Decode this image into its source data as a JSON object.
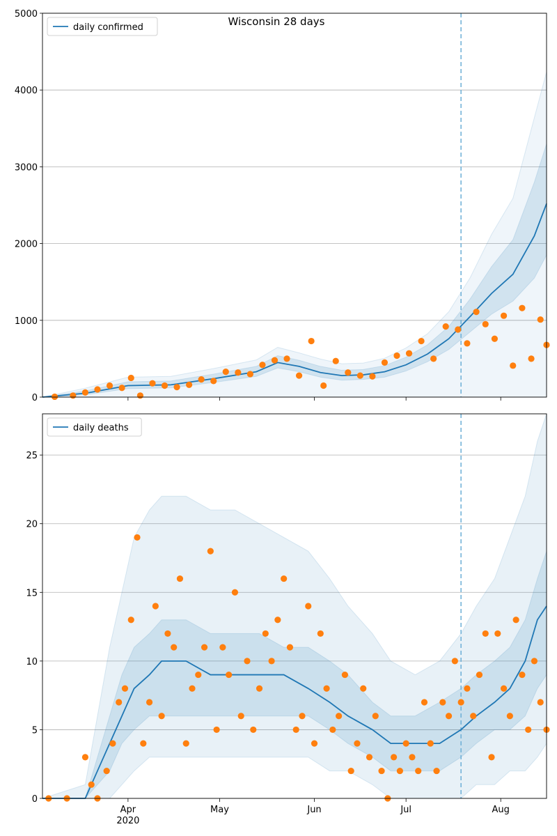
{
  "figure": {
    "title": "Wisconsin 28 days"
  },
  "colors": {
    "model_line": "#1f77b4",
    "observed_points": "#ff7f0e",
    "band": "#1f77b4",
    "vline": "#6baed6",
    "grid": "#b0b0b0"
  },
  "chart_data": [
    {
      "type": "line",
      "panel": "top",
      "title": "Wisconsin 28 days",
      "legend": {
        "placement": "top-left",
        "entries": [
          "daily confirmed"
        ]
      },
      "ylim": [
        0,
        5000
      ],
      "yticks": [
        0,
        1000,
        2000,
        3000,
        4000,
        5000
      ],
      "xlim": [
        "2020-03-04",
        "2020-08-16"
      ],
      "grid": "horizontal",
      "forecast_start": "2020-07-19",
      "model_series": {
        "name": "daily confirmed",
        "x": [
          "2020-03-04",
          "2020-03-18",
          "2020-04-01",
          "2020-04-15",
          "2020-04-29",
          "2020-05-13",
          "2020-05-20",
          "2020-05-27",
          "2020-06-03",
          "2020-06-10",
          "2020-06-17",
          "2020-06-24",
          "2020-07-01",
          "2020-07-08",
          "2020-07-15",
          "2020-07-22",
          "2020-07-29",
          "2020-08-05",
          "2020-08-12",
          "2020-08-16"
        ],
        "values": [
          0,
          50,
          150,
          160,
          240,
          330,
          450,
          400,
          320,
          280,
          290,
          330,
          420,
          560,
          760,
          1050,
          1350,
          1600,
          2100,
          2520
        ],
        "band_inner": [
          [
            0,
            0,
            0
          ],
          [
            0,
            30,
            80
          ],
          [
            0,
            110,
            200
          ],
          [
            0,
            120,
            210
          ],
          [
            0,
            190,
            300
          ],
          [
            0,
            270,
            400
          ],
          [
            0,
            380,
            540
          ],
          [
            0,
            330,
            480
          ],
          [
            0,
            260,
            400
          ],
          [
            0,
            220,
            350
          ],
          [
            0,
            230,
            360
          ],
          [
            0,
            260,
            410
          ],
          [
            0,
            340,
            520
          ],
          [
            0,
            460,
            680
          ],
          [
            0,
            620,
            920
          ],
          [
            0,
            850,
            1280
          ],
          [
            0,
            1080,
            1700
          ],
          [
            0,
            1250,
            2050
          ],
          [
            0,
            1550,
            2800
          ],
          [
            0,
            1850,
            3300
          ]
        ]
      },
      "observed": {
        "x": [
          "2020-03-08",
          "2020-03-14",
          "2020-03-18",
          "2020-03-22",
          "2020-03-26",
          "2020-03-30",
          "2020-04-02",
          "2020-04-05",
          "2020-04-09",
          "2020-04-13",
          "2020-04-17",
          "2020-04-21",
          "2020-04-25",
          "2020-04-29",
          "2020-05-03",
          "2020-05-07",
          "2020-05-11",
          "2020-05-15",
          "2020-05-19",
          "2020-05-23",
          "2020-05-27",
          "2020-05-31",
          "2020-06-04",
          "2020-06-08",
          "2020-06-12",
          "2020-06-16",
          "2020-06-20",
          "2020-06-24",
          "2020-06-28",
          "2020-07-02",
          "2020-07-06",
          "2020-07-10",
          "2020-07-14",
          "2020-07-18",
          "2020-07-21",
          "2020-07-24",
          "2020-07-27",
          "2020-07-30",
          "2020-08-02",
          "2020-08-05",
          "2020-08-08",
          "2020-08-11",
          "2020-08-14",
          "2020-08-16"
        ],
        "values": [
          5,
          20,
          60,
          100,
          150,
          120,
          250,
          20,
          180,
          150,
          130,
          160,
          230,
          210,
          330,
          320,
          300,
          420,
          480,
          500,
          280,
          730,
          150,
          470,
          320,
          280,
          270,
          450,
          540,
          570,
          730,
          500,
          920,
          880,
          700,
          1110,
          950,
          760,
          1060,
          410,
          1160,
          500,
          1010,
          680
        ]
      }
    },
    {
      "type": "line",
      "panel": "bottom",
      "legend": {
        "placement": "top-left",
        "entries": [
          "daily deaths"
        ]
      },
      "ylim": [
        0,
        28
      ],
      "yticks": [
        0,
        5,
        10,
        15,
        20,
        25
      ],
      "xlim": [
        "2020-03-04",
        "2020-08-16"
      ],
      "xticks": [
        "Apr\n2020",
        "May",
        "Jun",
        "Jul",
        "Aug"
      ],
      "grid": "horizontal",
      "forecast_start": "2020-07-19",
      "model_series": {
        "name": "daily deaths",
        "x": [
          "2020-03-04",
          "2020-03-18",
          "2020-03-22",
          "2020-03-26",
          "2020-03-30",
          "2020-04-03",
          "2020-04-08",
          "2020-04-12",
          "2020-04-20",
          "2020-04-28",
          "2020-05-06",
          "2020-05-14",
          "2020-05-22",
          "2020-05-30",
          "2020-06-06",
          "2020-06-12",
          "2020-06-20",
          "2020-06-26",
          "2020-07-04",
          "2020-07-12",
          "2020-07-19",
          "2020-07-24",
          "2020-07-30",
          "2020-08-04",
          "2020-08-09",
          "2020-08-13",
          "2020-08-16"
        ],
        "values": [
          0,
          0,
          2,
          4,
          6,
          8,
          9,
          10,
          10,
          9,
          9,
          9,
          9,
          8,
          7,
          6,
          5,
          4,
          4,
          4,
          5,
          6,
          7,
          8,
          10,
          13,
          14
        ],
        "band_outer": [
          [
            0,
            0
          ],
          [
            0,
            1
          ],
          [
            0,
            6
          ],
          [
            0,
            11
          ],
          [
            1,
            15
          ],
          [
            2,
            19
          ],
          [
            3,
            21
          ],
          [
            3,
            22
          ],
          [
            3,
            22
          ],
          [
            3,
            21
          ],
          [
            3,
            21
          ],
          [
            3,
            20
          ],
          [
            3,
            19
          ],
          [
            3,
            18
          ],
          [
            2,
            16
          ],
          [
            2,
            14
          ],
          [
            1,
            12
          ],
          [
            0,
            10
          ],
          [
            0,
            9
          ],
          [
            0,
            10
          ],
          [
            0,
            12
          ],
          [
            1,
            14
          ],
          [
            1,
            16
          ],
          [
            2,
            19
          ],
          [
            2,
            22
          ],
          [
            3,
            26
          ],
          [
            4,
            28
          ]
        ],
        "band_inner": [
          [
            0,
            0
          ],
          [
            0,
            0
          ],
          [
            1,
            3
          ],
          [
            2,
            6
          ],
          [
            4,
            9
          ],
          [
            5,
            11
          ],
          [
            6,
            12
          ],
          [
            6,
            13
          ],
          [
            6,
            13
          ],
          [
            6,
            12
          ],
          [
            6,
            12
          ],
          [
            6,
            12
          ],
          [
            6,
            11
          ],
          [
            6,
            11
          ],
          [
            5,
            10
          ],
          [
            4,
            9
          ],
          [
            3,
            7
          ],
          [
            2,
            6
          ],
          [
            2,
            6
          ],
          [
            2,
            7
          ],
          [
            3,
            8
          ],
          [
            4,
            9
          ],
          [
            5,
            10
          ],
          [
            5,
            11
          ],
          [
            6,
            13
          ],
          [
            8,
            16
          ],
          [
            9,
            18
          ]
        ]
      },
      "observed": {
        "x": [
          "2020-03-06",
          "2020-03-12",
          "2020-03-18",
          "2020-03-20",
          "2020-03-22",
          "2020-03-25",
          "2020-03-27",
          "2020-03-29",
          "2020-03-31",
          "2020-04-02",
          "2020-04-04",
          "2020-04-06",
          "2020-04-08",
          "2020-04-10",
          "2020-04-12",
          "2020-04-14",
          "2020-04-16",
          "2020-04-18",
          "2020-04-20",
          "2020-04-22",
          "2020-04-24",
          "2020-04-26",
          "2020-04-28",
          "2020-04-30",
          "2020-05-02",
          "2020-05-04",
          "2020-05-06",
          "2020-05-08",
          "2020-05-10",
          "2020-05-12",
          "2020-05-14",
          "2020-05-16",
          "2020-05-18",
          "2020-05-20",
          "2020-05-22",
          "2020-05-24",
          "2020-05-26",
          "2020-05-28",
          "2020-05-30",
          "2020-06-01",
          "2020-06-03",
          "2020-06-05",
          "2020-06-07",
          "2020-06-09",
          "2020-06-11",
          "2020-06-13",
          "2020-06-15",
          "2020-06-17",
          "2020-06-19",
          "2020-06-21",
          "2020-06-23",
          "2020-06-25",
          "2020-06-27",
          "2020-06-29",
          "2020-07-01",
          "2020-07-03",
          "2020-07-05",
          "2020-07-07",
          "2020-07-09",
          "2020-07-11",
          "2020-07-13",
          "2020-07-15",
          "2020-07-17",
          "2020-07-19",
          "2020-07-21",
          "2020-07-23",
          "2020-07-25",
          "2020-07-27",
          "2020-07-29",
          "2020-07-31",
          "2020-08-02",
          "2020-08-04",
          "2020-08-06",
          "2020-08-08",
          "2020-08-10",
          "2020-08-12",
          "2020-08-14",
          "2020-08-16"
        ],
        "values": [
          0,
          0,
          3,
          1,
          0,
          2,
          4,
          7,
          8,
          13,
          19,
          4,
          7,
          14,
          6,
          12,
          11,
          16,
          4,
          8,
          9,
          11,
          18,
          5,
          11,
          9,
          15,
          6,
          10,
          5,
          8,
          12,
          10,
          13,
          16,
          11,
          5,
          6,
          14,
          4,
          12,
          8,
          5,
          6,
          9,
          2,
          4,
          8,
          3,
          6,
          2,
          0,
          3,
          2,
          4,
          3,
          2,
          7,
          4,
          2,
          7,
          6,
          10,
          7,
          8,
          6,
          9,
          12,
          3,
          12,
          8,
          6,
          13,
          9,
          5,
          10,
          7,
          5
        ]
      }
    }
  ]
}
